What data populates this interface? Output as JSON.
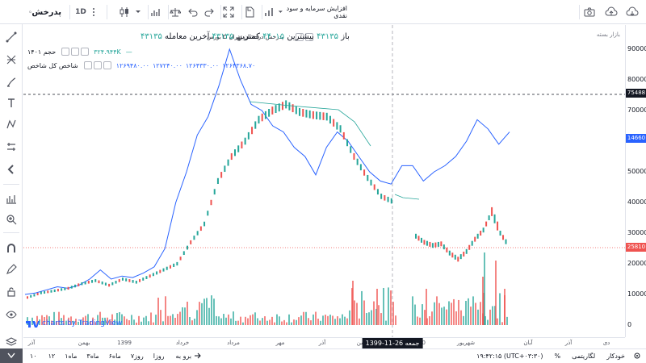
{
  "toolbar": {
    "symbol": "پدرخش",
    "interval": "1D",
    "compare_label": "افزایش سرمایه و سود نقدی"
  },
  "legend": {
    "title": "بورس D پدرخش-درخشان تهران",
    "open_label": "باز",
    "open_value": "۴۳۱۳۵",
    "high_label": "بیشترین",
    "high_value": "۴۴۰۱۵",
    "low_label": "کمترین",
    "low_value": "۴۳۱۳۵",
    "close_label": "آخرین معامله",
    "close_value": "۴۳۱۳۵",
    "volume_label": "حجم ۱۴۰۱",
    "volume_value": "۳۲۴.۹۴۴K",
    "index_label": "شاخص کل شاخص",
    "index_values": [
      "۱۲۶۹۴۸۰.۰۰",
      "۱۲۷۲۴۰.۰۰",
      "۱۲۶۴۳۳۰.۰۰",
      "۱۲۶۴۳۶۸.۷۰"
    ],
    "index_dash": "—",
    "market_label": "بازار بسته"
  },
  "price_axis": {
    "ticks": [
      "90000",
      "80000",
      "70000",
      "60000",
      "50000",
      "40000",
      "30000",
      "20000",
      "10000",
      "0"
    ],
    "tag_crosshair": "75488",
    "tag_index": "14660",
    "tag_last": "25810"
  },
  "time_axis": {
    "labels": [
      "آذر",
      "بهمن",
      "1399",
      "خرداد",
      "مرداد",
      "مهر",
      "آذر",
      "بهمن",
      "1400",
      "شهریور",
      "آبان",
      "آذر",
      "دی"
    ],
    "crosshair_date": "جمعه 26-11-1399"
  },
  "bottom_bar": {
    "ranges": [
      "۱۰",
      "۱۲",
      "۱ماه",
      "۳ماه",
      "۶ماه",
      "روز۷",
      "روزا",
      "برو به"
    ],
    "clock": "۱۹:۴۲:۱۵ (UTC+۰۳:۳۰)",
    "percent": "%",
    "log": "لگاریتمی",
    "auto": "خودکار"
  },
  "watermark": "charts by TradingView",
  "colors": {
    "up": "#26a69a",
    "down": "#ef5350",
    "line": "#2962ff",
    "crosshair": "#9598a1",
    "tag_index": "#2962ff",
    "tag_last": "#ef5350",
    "tag_cross": "#131722"
  },
  "chart_data": {
    "type": "line",
    "price_range": [
      0,
      95000
    ],
    "index_line": [
      10000,
      10500,
      11500,
      12500,
      12000,
      13000,
      15000,
      18000,
      15000,
      16000,
      15500,
      17000,
      19000,
      25000,
      40000,
      50000,
      62000,
      68000,
      78000,
      90000,
      80000,
      72000,
      70000,
      65000,
      63000,
      58000,
      55000,
      49000,
      58000,
      63000,
      60000,
      55000,
      50000,
      47000,
      46000,
      52000,
      52000,
      47000,
      50000,
      52000,
      55000,
      60000,
      67000,
      64000,
      59000,
      63000
    ],
    "pre_price": [
      9000,
      10500,
      11200,
      12000,
      13500,
      14500,
      13000,
      15000,
      14000,
      16000,
      18000,
      20000,
      27000,
      33000,
      47000,
      55000,
      60000,
      67000,
      70000,
      72000,
      69500,
      68500,
      68000,
      64000,
      55000,
      48000,
      42000,
      40000
    ],
    "post_price": [
      29000,
      27000,
      26000,
      26500,
      23500,
      21500,
      24000,
      28000,
      31000,
      37000,
      30000,
      25810
    ]
  }
}
